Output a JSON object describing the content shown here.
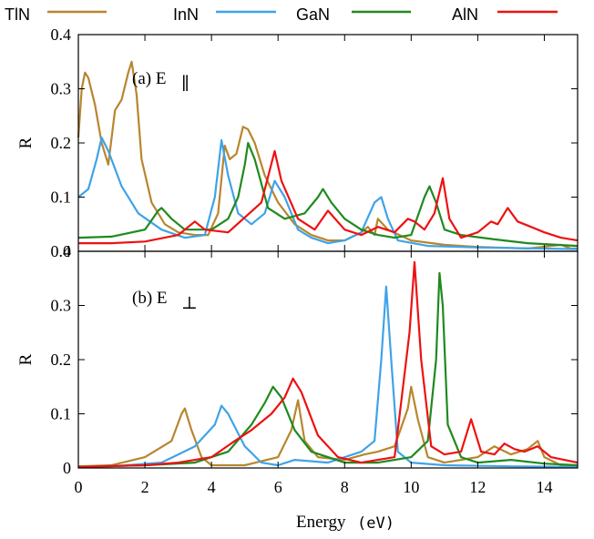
{
  "legend": [
    {
      "name": "TlN",
      "color": "#b8862e"
    },
    {
      "name": "InN",
      "color": "#3fa3e8"
    },
    {
      "name": "GaN",
      "color": "#1f8a1f"
    },
    {
      "name": "AlN",
      "color": "#ee1111"
    }
  ],
  "x_axis": {
    "label": "Energy",
    "unit": "(eV)",
    "ticks": [
      "0",
      "2",
      "4",
      "6",
      "8",
      "10",
      "12",
      "14"
    ]
  },
  "panels": [
    {
      "id": "a",
      "label_main": "(a) E",
      "label_sub": "∥",
      "ylabel": "R",
      "yticks": [
        "0",
        "0.1",
        "0.2",
        "0.3",
        "0.4"
      ]
    },
    {
      "id": "b",
      "label_main": "(b) E",
      "label_sub": "⊥",
      "ylabel": "R",
      "yticks": [
        "0",
        "0.1",
        "0.2",
        "0.3",
        "0.4"
      ]
    }
  ],
  "chart_data": [
    {
      "type": "line",
      "title": "(a) E∥",
      "xlabel": "Energy (eV)",
      "ylabel": "R",
      "xlim": [
        0,
        15
      ],
      "ylim": [
        0,
        0.4
      ],
      "legend_position": "top",
      "series": [
        {
          "name": "TlN",
          "color": "#b8862e",
          "points": [
            [
              0,
              0.21
            ],
            [
              0.1,
              0.3
            ],
            [
              0.2,
              0.33
            ],
            [
              0.3,
              0.32
            ],
            [
              0.5,
              0.27
            ],
            [
              0.7,
              0.2
            ],
            [
              0.9,
              0.16
            ],
            [
              1.1,
              0.26
            ],
            [
              1.3,
              0.28
            ],
            [
              1.5,
              0.33
            ],
            [
              1.6,
              0.35
            ],
            [
              1.75,
              0.29
            ],
            [
              1.9,
              0.17
            ],
            [
              2.2,
              0.09
            ],
            [
              2.6,
              0.05
            ],
            [
              3.0,
              0.035
            ],
            [
              3.5,
              0.03
            ],
            [
              3.9,
              0.03
            ],
            [
              4.2,
              0.07
            ],
            [
              4.4,
              0.195
            ],
            [
              4.55,
              0.17
            ],
            [
              4.75,
              0.18
            ],
            [
              4.95,
              0.23
            ],
            [
              5.1,
              0.225
            ],
            [
              5.3,
              0.2
            ],
            [
              5.6,
              0.14
            ],
            [
              6.0,
              0.09
            ],
            [
              6.5,
              0.05
            ],
            [
              7.0,
              0.03
            ],
            [
              7.5,
              0.02
            ],
            [
              8.0,
              0.02
            ],
            [
              8.5,
              0.035
            ],
            [
              8.7,
              0.045
            ],
            [
              8.9,
              0.03
            ],
            [
              9.0,
              0.06
            ],
            [
              9.3,
              0.04
            ],
            [
              10.0,
              0.02
            ],
            [
              11.0,
              0.012
            ],
            [
              12.0,
              0.008
            ],
            [
              13.5,
              0.005
            ],
            [
              14.5,
              0.012
            ],
            [
              14.8,
              0.005
            ],
            [
              15,
              0.005
            ]
          ]
        },
        {
          "name": "InN",
          "color": "#3fa3e8",
          "points": [
            [
              0,
              0.1
            ],
            [
              0.3,
              0.115
            ],
            [
              0.55,
              0.17
            ],
            [
              0.7,
              0.21
            ],
            [
              0.9,
              0.185
            ],
            [
              1.3,
              0.12
            ],
            [
              1.8,
              0.07
            ],
            [
              2.5,
              0.04
            ],
            [
              3.2,
              0.025
            ],
            [
              3.8,
              0.03
            ],
            [
              4.1,
              0.1
            ],
            [
              4.3,
              0.205
            ],
            [
              4.5,
              0.14
            ],
            [
              4.8,
              0.07
            ],
            [
              5.2,
              0.05
            ],
            [
              5.6,
              0.07
            ],
            [
              5.9,
              0.13
            ],
            [
              6.2,
              0.1
            ],
            [
              6.6,
              0.04
            ],
            [
              7.0,
              0.025
            ],
            [
              7.5,
              0.015
            ],
            [
              8.0,
              0.02
            ],
            [
              8.5,
              0.035
            ],
            [
              8.9,
              0.09
            ],
            [
              9.1,
              0.1
            ],
            [
              9.3,
              0.06
            ],
            [
              9.6,
              0.02
            ],
            [
              10.5,
              0.01
            ],
            [
              12.0,
              0.007
            ],
            [
              15,
              0.004
            ]
          ]
        },
        {
          "name": "GaN",
          "color": "#1f8a1f",
          "points": [
            [
              0,
              0.025
            ],
            [
              1.0,
              0.027
            ],
            [
              2.0,
              0.04
            ],
            [
              2.4,
              0.075
            ],
            [
              2.5,
              0.08
            ],
            [
              2.8,
              0.06
            ],
            [
              3.2,
              0.04
            ],
            [
              4.0,
              0.04
            ],
            [
              4.5,
              0.06
            ],
            [
              4.8,
              0.1
            ],
            [
              5.0,
              0.16
            ],
            [
              5.1,
              0.2
            ],
            [
              5.3,
              0.17
            ],
            [
              5.7,
              0.08
            ],
            [
              6.2,
              0.06
            ],
            [
              6.8,
              0.07
            ],
            [
              7.2,
              0.1
            ],
            [
              7.35,
              0.115
            ],
            [
              7.6,
              0.09
            ],
            [
              8.0,
              0.06
            ],
            [
              8.5,
              0.04
            ],
            [
              9.0,
              0.03
            ],
            [
              9.5,
              0.025
            ],
            [
              10.0,
              0.03
            ],
            [
              10.4,
              0.1
            ],
            [
              10.55,
              0.12
            ],
            [
              10.75,
              0.09
            ],
            [
              11.0,
              0.04
            ],
            [
              11.5,
              0.03
            ],
            [
              12.5,
              0.022
            ],
            [
              13.5,
              0.015
            ],
            [
              15,
              0.01
            ]
          ]
        },
        {
          "name": "AlN",
          "color": "#ee1111",
          "points": [
            [
              0,
              0.015
            ],
            [
              1.0,
              0.015
            ],
            [
              2.0,
              0.018
            ],
            [
              3.0,
              0.03
            ],
            [
              3.5,
              0.055
            ],
            [
              3.8,
              0.04
            ],
            [
              4.5,
              0.035
            ],
            [
              5.5,
              0.09
            ],
            [
              5.9,
              0.185
            ],
            [
              6.1,
              0.13
            ],
            [
              6.6,
              0.06
            ],
            [
              7.1,
              0.04
            ],
            [
              7.5,
              0.075
            ],
            [
              8.0,
              0.04
            ],
            [
              8.5,
              0.03
            ],
            [
              9.0,
              0.045
            ],
            [
              9.5,
              0.035
            ],
            [
              9.9,
              0.06
            ],
            [
              10.1,
              0.055
            ],
            [
              10.4,
              0.04
            ],
            [
              10.7,
              0.07
            ],
            [
              10.95,
              0.135
            ],
            [
              11.15,
              0.06
            ],
            [
              11.5,
              0.025
            ],
            [
              12.0,
              0.035
            ],
            [
              12.4,
              0.055
            ],
            [
              12.6,
              0.05
            ],
            [
              12.9,
              0.08
            ],
            [
              13.2,
              0.055
            ],
            [
              13.6,
              0.045
            ],
            [
              14.0,
              0.035
            ],
            [
              14.5,
              0.025
            ],
            [
              15,
              0.02
            ]
          ]
        }
      ]
    },
    {
      "type": "line",
      "title": "(b) E⊥",
      "xlabel": "Energy (eV)",
      "ylabel": "R",
      "xlim": [
        0,
        15
      ],
      "ylim": [
        0,
        0.4
      ],
      "series": [
        {
          "name": "TlN",
          "color": "#b8862e",
          "points": [
            [
              0,
              0.003
            ],
            [
              1.0,
              0.005
            ],
            [
              2.0,
              0.02
            ],
            [
              2.8,
              0.05
            ],
            [
              3.1,
              0.1
            ],
            [
              3.2,
              0.11
            ],
            [
              3.4,
              0.07
            ],
            [
              3.7,
              0.02
            ],
            [
              4.0,
              0.005
            ],
            [
              5.0,
              0.005
            ],
            [
              6.0,
              0.02
            ],
            [
              6.4,
              0.07
            ],
            [
              6.6,
              0.125
            ],
            [
              6.8,
              0.05
            ],
            [
              7.2,
              0.02
            ],
            [
              8.0,
              0.015
            ],
            [
              8.6,
              0.025
            ],
            [
              9.0,
              0.03
            ],
            [
              9.5,
              0.04
            ],
            [
              9.9,
              0.11
            ],
            [
              10.0,
              0.15
            ],
            [
              10.2,
              0.09
            ],
            [
              10.5,
              0.02
            ],
            [
              11.0,
              0.01
            ],
            [
              12.0,
              0.02
            ],
            [
              12.5,
              0.04
            ],
            [
              13.0,
              0.025
            ],
            [
              13.5,
              0.035
            ],
            [
              13.8,
              0.05
            ],
            [
              14.0,
              0.02
            ],
            [
              14.5,
              0.005
            ],
            [
              15,
              0.003
            ]
          ]
        },
        {
          "name": "InN",
          "color": "#3fa3e8",
          "points": [
            [
              0,
              0.002
            ],
            [
              1.0,
              0.003
            ],
            [
              2.5,
              0.01
            ],
            [
              3.5,
              0.04
            ],
            [
              4.1,
              0.08
            ],
            [
              4.3,
              0.115
            ],
            [
              4.5,
              0.1
            ],
            [
              5.0,
              0.04
            ],
            [
              5.5,
              0.01
            ],
            [
              6.0,
              0.005
            ],
            [
              6.5,
              0.015
            ],
            [
              7.5,
              0.01
            ],
            [
              8.5,
              0.03
            ],
            [
              8.9,
              0.05
            ],
            [
              9.1,
              0.2
            ],
            [
              9.25,
              0.335
            ],
            [
              9.4,
              0.2
            ],
            [
              9.6,
              0.03
            ],
            [
              10.0,
              0.01
            ],
            [
              11.0,
              0.005
            ],
            [
              13.0,
              0.003
            ],
            [
              15,
              0.002
            ]
          ]
        },
        {
          "name": "GaN",
          "color": "#1f8a1f",
          "points": [
            [
              0,
              0.002
            ],
            [
              2.0,
              0.005
            ],
            [
              3.5,
              0.01
            ],
            [
              4.5,
              0.03
            ],
            [
              5.2,
              0.08
            ],
            [
              5.6,
              0.12
            ],
            [
              5.85,
              0.15
            ],
            [
              6.1,
              0.13
            ],
            [
              6.5,
              0.07
            ],
            [
              7.0,
              0.03
            ],
            [
              8.0,
              0.01
            ],
            [
              9.0,
              0.01
            ],
            [
              10.0,
              0.02
            ],
            [
              10.5,
              0.05
            ],
            [
              10.75,
              0.2
            ],
            [
              10.85,
              0.36
            ],
            [
              10.95,
              0.3
            ],
            [
              11.1,
              0.08
            ],
            [
              11.5,
              0.02
            ],
            [
              12.0,
              0.01
            ],
            [
              13.0,
              0.015
            ],
            [
              14.0,
              0.008
            ],
            [
              15,
              0.005
            ]
          ]
        },
        {
          "name": "AlN",
          "color": "#ee1111",
          "points": [
            [
              0,
              0.002
            ],
            [
              2.0,
              0.005
            ],
            [
              3.0,
              0.01
            ],
            [
              4.0,
              0.02
            ],
            [
              4.7,
              0.05
            ],
            [
              5.2,
              0.07
            ],
            [
              5.8,
              0.1
            ],
            [
              6.2,
              0.13
            ],
            [
              6.45,
              0.165
            ],
            [
              6.7,
              0.14
            ],
            [
              7.2,
              0.06
            ],
            [
              7.8,
              0.02
            ],
            [
              8.5,
              0.01
            ],
            [
              9.5,
              0.02
            ],
            [
              9.95,
              0.25
            ],
            [
              10.1,
              0.38
            ],
            [
              10.3,
              0.2
            ],
            [
              10.6,
              0.04
            ],
            [
              11.0,
              0.025
            ],
            [
              11.5,
              0.03
            ],
            [
              11.8,
              0.09
            ],
            [
              12.1,
              0.03
            ],
            [
              12.5,
              0.025
            ],
            [
              12.8,
              0.045
            ],
            [
              13.1,
              0.035
            ],
            [
              13.4,
              0.03
            ],
            [
              13.8,
              0.04
            ],
            [
              14.2,
              0.02
            ],
            [
              15,
              0.01
            ]
          ]
        }
      ]
    }
  ]
}
